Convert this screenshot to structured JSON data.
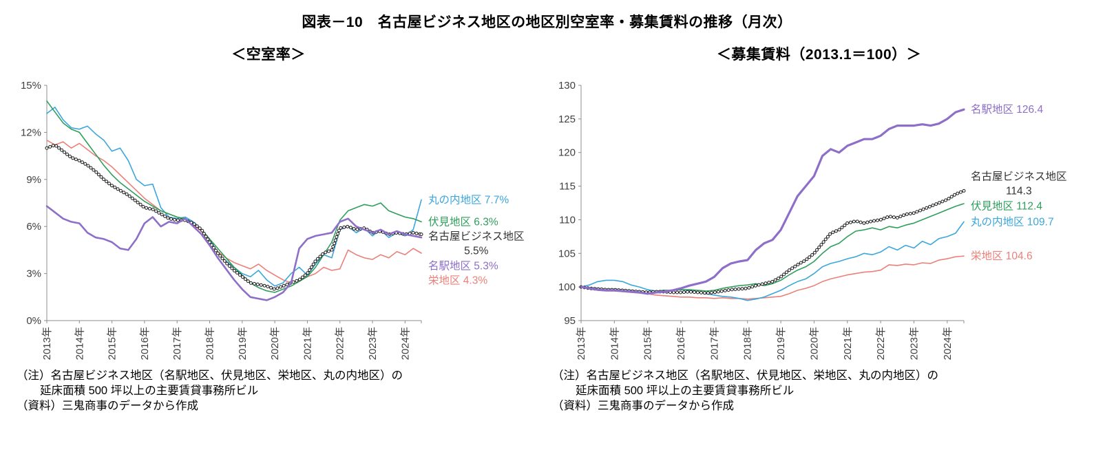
{
  "page": {
    "title": "図表－10　名古屋ビジネス地区の地区別空室率・募集賃料の推移（月次）"
  },
  "chart_data": [
    {
      "type": "line",
      "title": "＜空室率＞",
      "xlabel": "",
      "ylabel": "",
      "grid": false,
      "legend_position": "right",
      "ylim": [
        0,
        15
      ],
      "ytick_step": 3,
      "y_tick_labels": [
        "0%",
        "3%",
        "6%",
        "9%",
        "12%",
        "15%"
      ],
      "x_start": 2013.0,
      "x_step": 0.25,
      "x_end": 2024.5,
      "x_tick_labels": [
        "2013年",
        "2014年",
        "2015年",
        "2016年",
        "2017年",
        "2018年",
        "2019年",
        "2020年",
        "2021年",
        "2022年",
        "2023年",
        "2024年"
      ],
      "notes": [
        "（注）名古屋ビジネス地区（名駅地区、伏見地区、栄地区、丸の内地区）の",
        "延床面積 500 坪以上の主要賃貸事務所ビル",
        "（資料）三鬼商事のデータから作成"
      ],
      "series": [
        {
          "key": "sakae",
          "name": "栄地区",
          "color": "#EA8079",
          "line_width": 1.6,
          "marker": "none",
          "label_lines": [
            "栄地区 4.3%"
          ],
          "values": [
            11.5,
            11.2,
            11.4,
            11.0,
            11.3,
            10.9,
            10.5,
            10.2,
            9.8,
            9.3,
            8.8,
            8.3,
            7.8,
            7.4,
            7.0,
            6.8,
            6.6,
            6.4,
            6.1,
            5.7,
            5.0,
            4.4,
            4.0,
            3.7,
            3.5,
            3.3,
            3.6,
            3.2,
            2.9,
            2.6,
            2.4,
            2.6,
            2.8,
            3.0,
            3.4,
            3.2,
            3.3,
            4.5,
            4.2,
            4.0,
            3.9,
            4.2,
            4.0,
            4.4,
            4.2,
            4.6,
            4.3
          ]
        },
        {
          "key": "marunouchi",
          "name": "丸の内地区",
          "color": "#3AA6DC",
          "line_width": 1.6,
          "marker": "none",
          "label_lines": [
            "丸の内地区 7.7%"
          ],
          "values": [
            13.2,
            13.6,
            12.8,
            12.3,
            12.2,
            12.4,
            11.9,
            11.5,
            10.8,
            11.0,
            10.2,
            9.0,
            8.6,
            8.7,
            7.2,
            6.6,
            6.5,
            6.6,
            6.3,
            5.8,
            5.2,
            4.3,
            3.8,
            3.4,
            3.0,
            2.8,
            3.2,
            2.6,
            2.2,
            2.4,
            3.0,
            3.4,
            2.9,
            3.6,
            4.2,
            4.0,
            5.8,
            6.0,
            5.6,
            5.9,
            5.4,
            5.8,
            5.3,
            5.6,
            5.4,
            5.8,
            7.7
          ]
        },
        {
          "key": "fushimi",
          "name": "伏見地区",
          "color": "#2E9E5B",
          "line_width": 1.6,
          "marker": "none",
          "label_lines": [
            "伏見地区 6.3%"
          ],
          "values": [
            14.0,
            13.3,
            12.6,
            12.2,
            12.0,
            11.3,
            10.6,
            9.9,
            9.3,
            8.8,
            8.4,
            8.0,
            7.6,
            7.3,
            7.0,
            6.8,
            6.6,
            6.5,
            6.2,
            5.8,
            5.2,
            4.6,
            4.0,
            3.4,
            2.9,
            2.4,
            2.1,
            1.9,
            1.8,
            2.0,
            2.2,
            2.5,
            2.8,
            3.4,
            4.2,
            5.0,
            6.4,
            7.0,
            7.2,
            7.4,
            7.3,
            7.5,
            7.0,
            6.8,
            6.6,
            6.5,
            6.3
          ]
        },
        {
          "key": "nagoya-business",
          "name": "名古屋ビジネス地区",
          "color": "#1A1A1A",
          "label_color": "#333333",
          "line_width": 0.9,
          "marker": "circle",
          "label_lines": [
            "名古屋ビジネス地区",
            "5.5%"
          ],
          "values": [
            11.0,
            11.2,
            10.8,
            10.4,
            10.2,
            9.9,
            9.5,
            9.0,
            8.6,
            8.3,
            8.0,
            7.6,
            7.2,
            7.1,
            6.8,
            6.5,
            6.4,
            6.4,
            6.2,
            5.8,
            5.0,
            4.3,
            3.7,
            3.2,
            2.8,
            2.4,
            2.3,
            2.2,
            2.0,
            2.2,
            2.4,
            2.6,
            3.0,
            3.8,
            4.3,
            4.5,
            5.9,
            6.0,
            5.8,
            5.9,
            5.6,
            5.7,
            5.5,
            5.6,
            5.5,
            5.6,
            5.5
          ]
        },
        {
          "key": "meieki",
          "name": "名駅地区",
          "color": "#8D6EC8",
          "line_width": 2.6,
          "marker": "none",
          "label_lines": [
            "名駅地区 5.3%"
          ],
          "values": [
            7.3,
            6.9,
            6.5,
            6.3,
            6.2,
            5.6,
            5.3,
            5.2,
            5.0,
            4.6,
            4.5,
            5.2,
            6.2,
            6.6,
            6.0,
            6.3,
            6.2,
            6.5,
            6.0,
            5.5,
            4.8,
            4.0,
            3.3,
            2.6,
            2.0,
            1.5,
            1.4,
            1.3,
            1.5,
            1.8,
            2.4,
            4.6,
            5.2,
            5.4,
            5.5,
            5.6,
            6.3,
            6.5,
            6.0,
            5.8,
            5.6,
            5.8,
            5.5,
            5.7,
            5.5,
            5.4,
            5.3
          ]
        }
      ]
    },
    {
      "type": "line",
      "title": "＜募集賃料（2013.1＝100）＞",
      "xlabel": "",
      "ylabel": "",
      "grid": false,
      "legend_position": "right",
      "ylim": [
        95,
        130
      ],
      "ytick_step": 5,
      "y_tick_labels": [
        "95",
        "100",
        "105",
        "110",
        "115",
        "120",
        "125",
        "130"
      ],
      "x_start": 2013.0,
      "x_step": 0.25,
      "x_end": 2024.5,
      "x_tick_labels": [
        "2013年",
        "2014年",
        "2015年",
        "2016年",
        "2017年",
        "2018年",
        "2019年",
        "2020年",
        "2021年",
        "2022年",
        "2023年",
        "2024年"
      ],
      "notes": [
        "（注）名古屋ビジネス地区（名駅地区、伏見地区、栄地区、丸の内地区）の",
        "延床面積 500 坪以上の主要賃貸事務所ビル",
        "（資料）三鬼商事のデータから作成"
      ],
      "series": [
        {
          "key": "sakae",
          "name": "栄地区",
          "color": "#EA8079",
          "line_width": 1.6,
          "marker": "none",
          "label_lines": [
            "栄地区 104.6"
          ],
          "values": [
            100.0,
            99.7,
            99.5,
            99.4,
            99.4,
            99.3,
            99.2,
            99.1,
            99.0,
            98.8,
            98.7,
            98.6,
            98.5,
            98.5,
            98.4,
            98.4,
            98.3,
            98.4,
            98.3,
            98.3,
            98.2,
            98.3,
            98.4,
            98.5,
            98.6,
            99.0,
            99.5,
            99.8,
            100.2,
            100.8,
            101.2,
            101.5,
            101.8,
            102.0,
            102.2,
            102.3,
            102.5,
            103.3,
            103.2,
            103.4,
            103.3,
            103.6,
            103.5,
            104.0,
            104.2,
            104.5,
            104.6
          ]
        },
        {
          "key": "marunouchi",
          "name": "丸の内地区",
          "color": "#3AA6DC",
          "line_width": 1.6,
          "marker": "none",
          "label_lines": [
            "丸の内地区 109.7"
          ],
          "values": [
            100.0,
            100.3,
            100.8,
            101.0,
            101.0,
            100.8,
            100.3,
            100.0,
            99.6,
            99.4,
            99.5,
            99.5,
            99.6,
            99.5,
            99.3,
            99.0,
            98.8,
            98.6,
            98.5,
            98.3,
            98.0,
            98.2,
            98.5,
            99.0,
            99.5,
            100.2,
            100.8,
            101.2,
            102.0,
            103.0,
            103.5,
            103.8,
            104.2,
            104.5,
            105.0,
            104.8,
            105.2,
            106.0,
            105.5,
            106.2,
            105.8,
            106.8,
            106.3,
            107.2,
            107.5,
            108.0,
            109.7
          ]
        },
        {
          "key": "fushimi",
          "name": "伏見地区",
          "color": "#2E9E5B",
          "line_width": 1.6,
          "marker": "none",
          "label_lines": [
            "伏見地区 112.4"
          ],
          "values": [
            100.0,
            99.9,
            99.8,
            99.7,
            99.7,
            99.6,
            99.5,
            99.4,
            99.3,
            99.4,
            99.5,
            99.5,
            99.6,
            99.6,
            99.5,
            99.4,
            99.5,
            99.8,
            100.0,
            100.2,
            100.3,
            100.5,
            100.2,
            100.5,
            101.0,
            101.8,
            102.5,
            103.0,
            103.8,
            105.0,
            106.0,
            106.5,
            107.5,
            108.3,
            108.5,
            108.8,
            108.5,
            109.0,
            108.8,
            109.2,
            109.5,
            110.0,
            110.5,
            111.0,
            111.5,
            112.0,
            112.4
          ]
        },
        {
          "key": "nagoya-business",
          "name": "名古屋ビジネス地区",
          "color": "#1A1A1A",
          "label_color": "#333333",
          "line_width": 0.9,
          "marker": "circle",
          "label_lines": [
            "名古屋ビジネス地区",
            "114.3"
          ],
          "values": [
            100.0,
            99.8,
            99.7,
            99.6,
            99.6,
            99.5,
            99.4,
            99.3,
            99.2,
            99.3,
            99.3,
            99.2,
            99.2,
            99.3,
            99.2,
            99.1,
            99.2,
            99.4,
            99.6,
            99.7,
            99.8,
            100.2,
            100.5,
            100.8,
            101.5,
            102.5,
            103.3,
            104.0,
            105.0,
            106.5,
            108.0,
            108.5,
            109.5,
            109.8,
            109.5,
            109.8,
            110.0,
            110.5,
            110.3,
            110.8,
            111.0,
            111.5,
            112.0,
            112.5,
            113.0,
            113.8,
            114.3
          ]
        },
        {
          "key": "meieki",
          "name": "名駅地区",
          "color": "#8D6EC8",
          "line_width": 3.2,
          "marker": "none",
          "label_lines": [
            "名駅地区 126.4"
          ],
          "values": [
            100.0,
            99.8,
            99.6,
            99.5,
            99.5,
            99.4,
            99.3,
            99.2,
            99.0,
            99.2,
            99.3,
            99.5,
            99.8,
            100.2,
            100.5,
            100.8,
            101.5,
            102.8,
            103.5,
            103.8,
            104.0,
            105.5,
            106.5,
            107.0,
            108.5,
            111.0,
            113.5,
            115.0,
            116.5,
            119.5,
            120.5,
            120.0,
            121.0,
            121.5,
            122.0,
            122.0,
            122.5,
            123.5,
            124.0,
            124.0,
            124.0,
            124.2,
            124.0,
            124.3,
            125.0,
            126.0,
            126.4
          ]
        }
      ]
    }
  ]
}
